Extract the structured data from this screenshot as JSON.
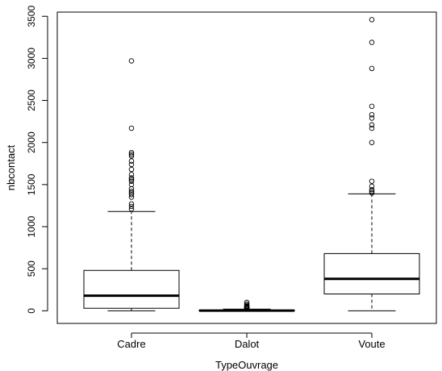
{
  "chart_data": {
    "type": "box",
    "title": "",
    "xlabel": "TypeOuvrage",
    "ylabel": "nbcontact",
    "ylim": [
      -150,
      3550
    ],
    "yticks": [
      "0",
      "500",
      "1000",
      "1500",
      "2000",
      "2500",
      "3000",
      "3500"
    ],
    "ytick_values": [
      0,
      500,
      1000,
      1500,
      2000,
      2500,
      3000,
      3500
    ],
    "categories": [
      "Cadre",
      "Dalot",
      "Voute"
    ],
    "boxes": [
      {
        "name": "Cadre",
        "whisker_low": 0,
        "q1": 30,
        "median": 180,
        "q3": 480,
        "whisker_high": 1180,
        "outliers": [
          1210,
          1240,
          1270,
          1350,
          1380,
          1400,
          1420,
          1450,
          1500,
          1540,
          1560,
          1580,
          1620,
          1680,
          1740,
          1780,
          1840,
          1860,
          1880,
          2170,
          2970
        ]
      },
      {
        "name": "Dalot",
        "whisker_low": 0,
        "q1": 0,
        "median": 2,
        "q3": 8,
        "whisker_high": 20,
        "outliers": [
          25,
          30,
          35,
          40,
          45,
          50,
          55,
          65,
          80,
          100
        ]
      },
      {
        "name": "Voute",
        "whisker_low": 0,
        "q1": 200,
        "median": 380,
        "q3": 680,
        "whisker_high": 1390,
        "outliers": [
          1400,
          1420,
          1440,
          1480,
          1540,
          2000,
          2170,
          2210,
          2290,
          2330,
          2430,
          2880,
          3190,
          3460
        ]
      }
    ],
    "grid": false,
    "legend": "none"
  }
}
